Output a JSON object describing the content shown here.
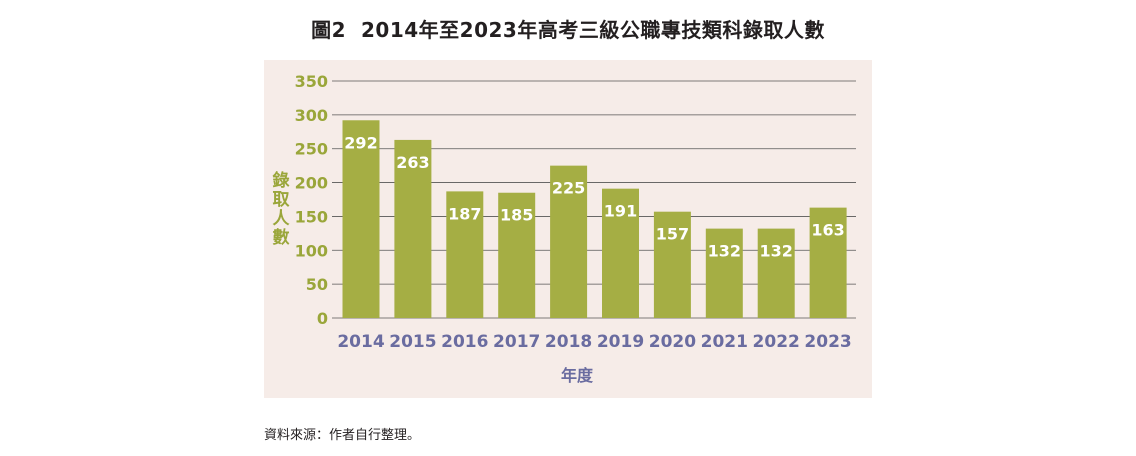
{
  "figure_label": "圖2",
  "title": "2014年至2023年高考三級公職專技類科錄取人數",
  "source_note": "資料來源：作者自行整理。",
  "colors": {
    "bar": "#a5ae44",
    "axis_text": "#9aa63a",
    "x_tick_text": "#6a6ca0",
    "grid": "#555555",
    "label_text": "#ffffff",
    "background": "#f6ece8"
  },
  "chart_data": {
    "type": "bar",
    "title": "2014年至2023年高考三級公職專技類科錄取人數",
    "xlabel": "年度",
    "ylabel": "錄取人數",
    "categories": [
      "2014",
      "2015",
      "2016",
      "2017",
      "2018",
      "2019",
      "2020",
      "2021",
      "2022",
      "2023"
    ],
    "values": [
      292,
      263,
      187,
      185,
      225,
      191,
      157,
      132,
      132,
      163
    ],
    "ylim": [
      0,
      350
    ],
    "yticks": [
      0,
      50,
      100,
      150,
      200,
      250,
      300,
      350
    ],
    "grid": true,
    "data_labels": true
  }
}
